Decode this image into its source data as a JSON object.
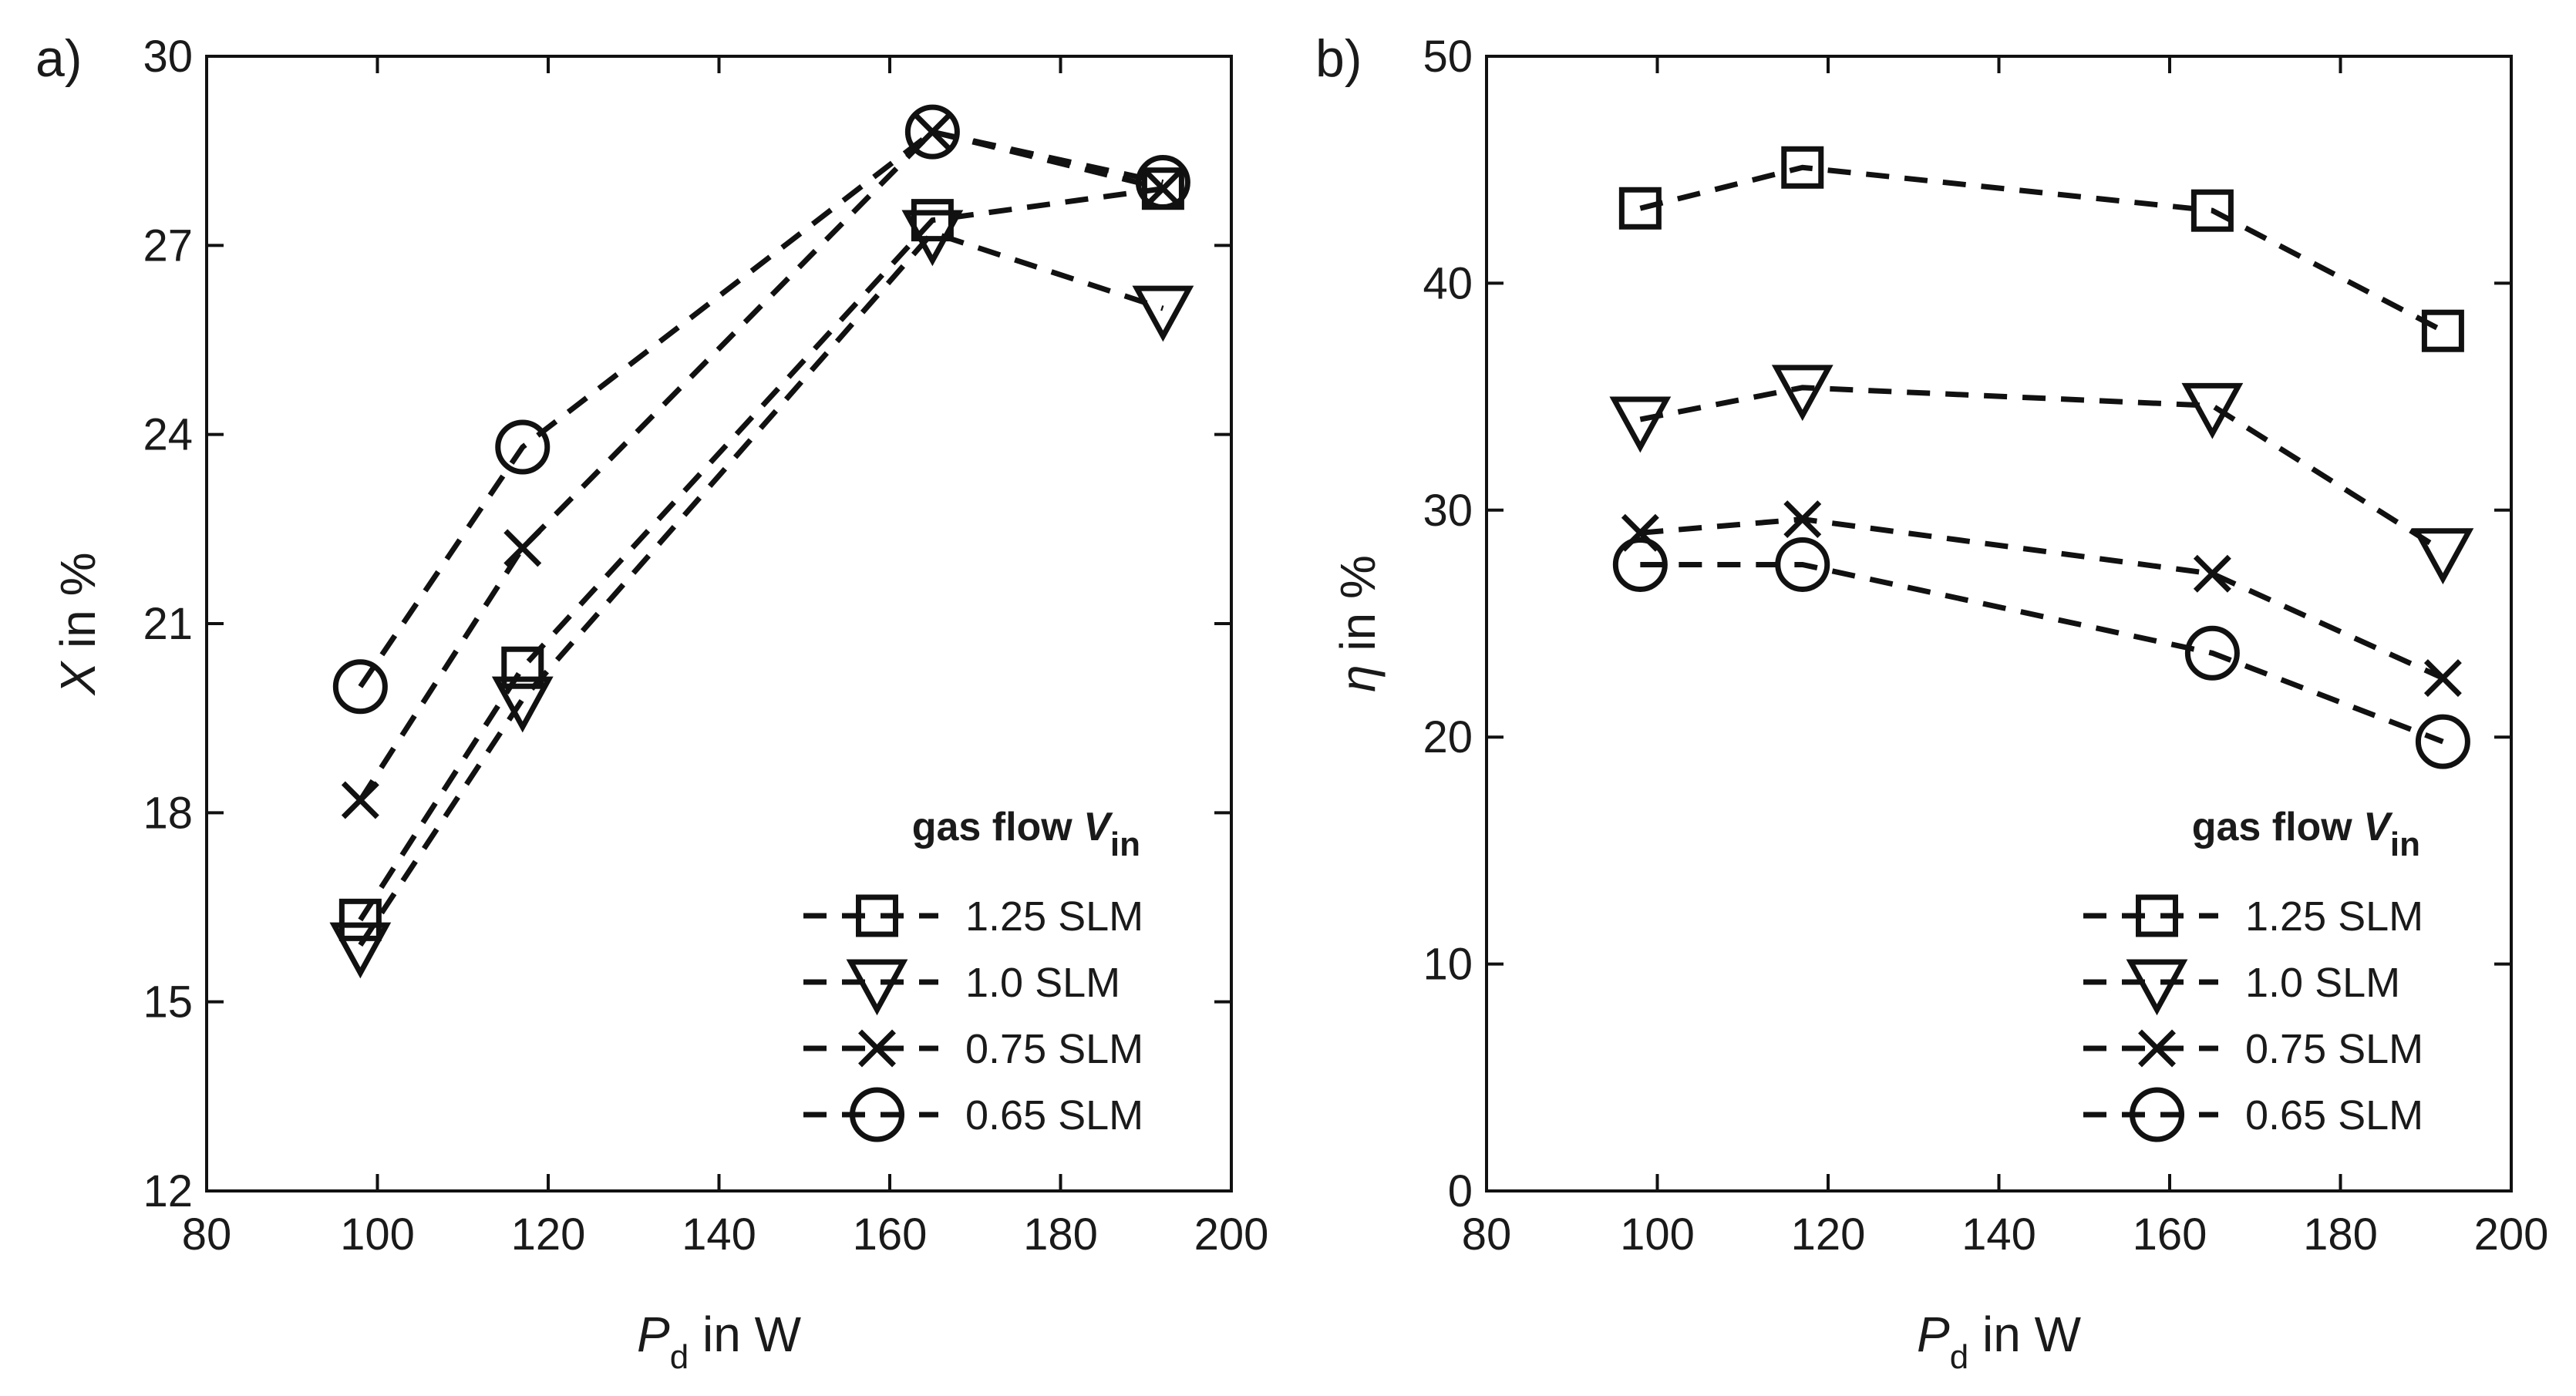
{
  "chart_data": [
    {
      "panel_label": "a)",
      "type": "line",
      "xlabel": {
        "var": "P",
        "sub": "d",
        "unit": " in W"
      },
      "ylabel": {
        "var": "X",
        "unit": " in %"
      },
      "xlim": [
        80,
        200
      ],
      "ylim": [
        12,
        30
      ],
      "xticks": [
        80,
        100,
        120,
        140,
        160,
        180,
        200
      ],
      "yticks": [
        12,
        15,
        18,
        21,
        24,
        27,
        30
      ],
      "x": [
        98,
        117,
        165,
        192
      ],
      "series": [
        {
          "name": "1.25 SLM",
          "marker": "square",
          "values": [
            16.3,
            20.3,
            27.4,
            27.9
          ]
        },
        {
          "name": "1.0 SLM",
          "marker": "triangle-down",
          "values": [
            15.9,
            19.8,
            27.2,
            26.0
          ]
        },
        {
          "name": "0.75 SLM",
          "marker": "x",
          "values": [
            18.2,
            22.2,
            28.8,
            27.9
          ]
        },
        {
          "name": "0.65 SLM",
          "marker": "circle",
          "values": [
            20.0,
            23.8,
            28.8,
            28.0
          ]
        }
      ],
      "legend": {
        "title": "gas flow ",
        "title_var": "V",
        "title_sub": "in",
        "position": "bottom-right"
      }
    },
    {
      "panel_label": "b)",
      "type": "line",
      "xlabel": {
        "var": "P",
        "sub": "d",
        "unit": " in W"
      },
      "ylabel": {
        "var": "η",
        "unit": " in %"
      },
      "xlim": [
        80,
        200
      ],
      "ylim": [
        0,
        50
      ],
      "xticks": [
        80,
        100,
        120,
        140,
        160,
        180,
        200
      ],
      "yticks": [
        0,
        10,
        20,
        30,
        40,
        50
      ],
      "x": [
        98,
        117,
        165,
        192
      ],
      "series": [
        {
          "name": "1.25 SLM",
          "marker": "square",
          "values": [
            43.3,
            45.1,
            43.2,
            37.9
          ]
        },
        {
          "name": "1.0 SLM",
          "marker": "triangle-down",
          "values": [
            34.0,
            35.4,
            34.6,
            28.2
          ]
        },
        {
          "name": "0.75 SLM",
          "marker": "x",
          "values": [
            29.0,
            29.6,
            27.2,
            22.6
          ]
        },
        {
          "name": "0.65 SLM",
          "marker": "circle",
          "values": [
            27.6,
            27.6,
            23.7,
            19.8
          ]
        }
      ],
      "legend": {
        "title": "gas flow ",
        "title_var": "V",
        "title_sub": "in",
        "position": "bottom-right"
      }
    }
  ]
}
